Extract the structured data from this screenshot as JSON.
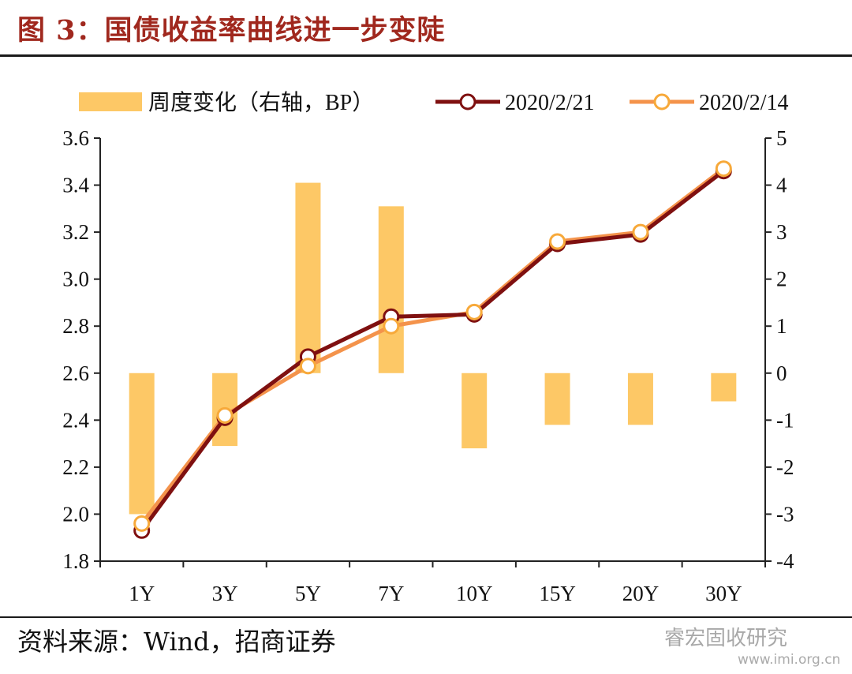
{
  "figure": {
    "title": "图 3：国债收益率曲线进一步变陡",
    "source": "资料来源：Wind，招商证券",
    "watermark": "睿宏固收研究",
    "watermark_url": "www.imi.org.cn"
  },
  "colors": {
    "title": "#a0281e",
    "bars": "#fdc866",
    "series_current": "#7f1010",
    "series_previous": "#f4934b",
    "marker_fill": "#ffffff"
  },
  "chart_data": {
    "type": "bar+line",
    "categories": [
      "1Y",
      "3Y",
      "5Y",
      "7Y",
      "10Y",
      "15Y",
      "20Y",
      "30Y"
    ],
    "left_axis": {
      "ylim": [
        1.8,
        3.6
      ],
      "ticks": [
        "1.8",
        "2.0",
        "2.2",
        "2.4",
        "2.6",
        "2.8",
        "3.0",
        "3.2",
        "3.4",
        "3.6"
      ]
    },
    "right_axis": {
      "ylim": [
        -4,
        5
      ],
      "ticks": [
        "-4",
        "-3",
        "-2",
        "-1",
        "0",
        "1",
        "2",
        "3",
        "4",
        "5"
      ]
    },
    "bars": {
      "name": "周度变化（右轴，BP）",
      "axis": "right",
      "values": [
        -3.0,
        -1.55,
        4.05,
        3.55,
        -1.6,
        -1.1,
        -1.1,
        -0.6
      ]
    },
    "series": [
      {
        "name": "2020/2/21",
        "axis": "left",
        "values": [
          1.93,
          2.41,
          2.67,
          2.84,
          2.85,
          3.15,
          3.19,
          3.46
        ]
      },
      {
        "name": "2020/2/14",
        "axis": "left",
        "values": [
          1.96,
          2.42,
          2.63,
          2.8,
          2.86,
          3.16,
          3.2,
          3.47
        ]
      }
    ],
    "legend_position": "top",
    "grid": false
  }
}
